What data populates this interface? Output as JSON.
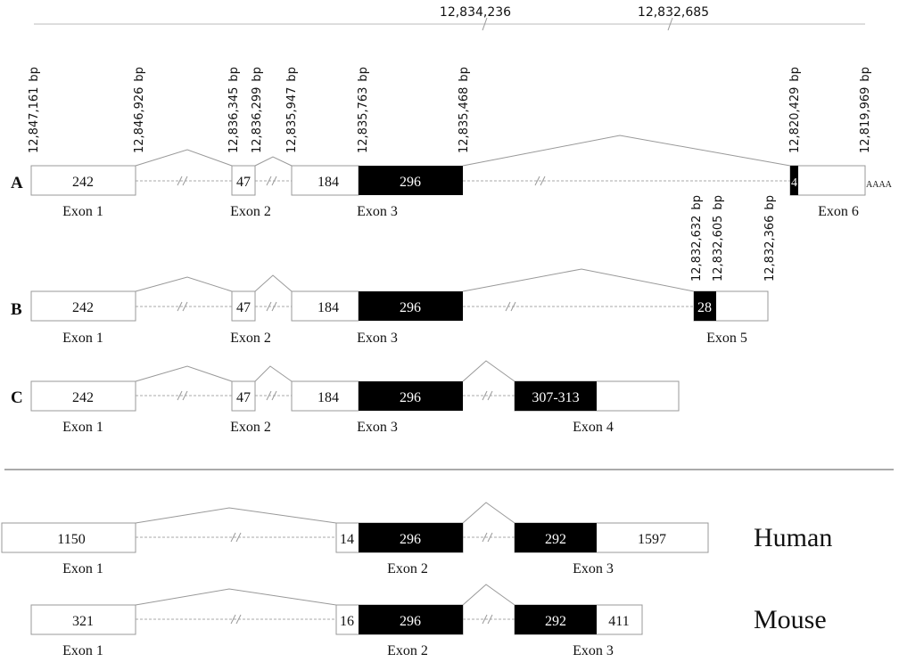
{
  "header": {
    "coord_left": "12,834,236",
    "coord_right": "12,832,685"
  },
  "bp_unit": "bp",
  "rows": [
    {
      "label": "A",
      "coords": [
        "12,847,161",
        "12,846,926",
        "12,836,345",
        "12,836,299",
        "12,835,947",
        "12,835,763",
        "12,835,468",
        "12,820,429",
        "12,819,969"
      ],
      "boxes": [
        "242",
        "47",
        "184",
        "296",
        "4",
        ""
      ],
      "exon_labels": [
        "Exon 1",
        "Exon 2",
        "Exon 3",
        "Exon 6"
      ],
      "polyA": "AAAA"
    },
    {
      "label": "B",
      "coords": [
        "12,832,632",
        "12,832,605",
        "12,832,366"
      ],
      "boxes": [
        "242",
        "47",
        "184",
        "296",
        "28",
        ""
      ],
      "exon_labels": [
        "Exon 1",
        "Exon 2",
        "Exon 3",
        "Exon 5"
      ]
    },
    {
      "label": "C",
      "boxes": [
        "242",
        "47",
        "184",
        "296",
        "307-313",
        ""
      ],
      "exon_labels": [
        "Exon 1",
        "Exon 2",
        "Exon 3",
        "Exon 4"
      ]
    }
  ],
  "species": [
    {
      "name": "Human",
      "boxes": [
        "1150",
        "14",
        "296",
        "292",
        "1597"
      ],
      "exon_labels": [
        "Exon 1",
        "Exon 2",
        "Exon 3"
      ]
    },
    {
      "name": "Mouse",
      "boxes": [
        "321",
        "16",
        "296",
        "292",
        "411"
      ],
      "exon_labels": [
        "Exon 1",
        "Exon 2",
        "Exon 3"
      ]
    }
  ],
  "colors": {
    "stroke": "#999999",
    "coding": "#000000",
    "noncoding": "#ffffff",
    "text": "#111111"
  }
}
